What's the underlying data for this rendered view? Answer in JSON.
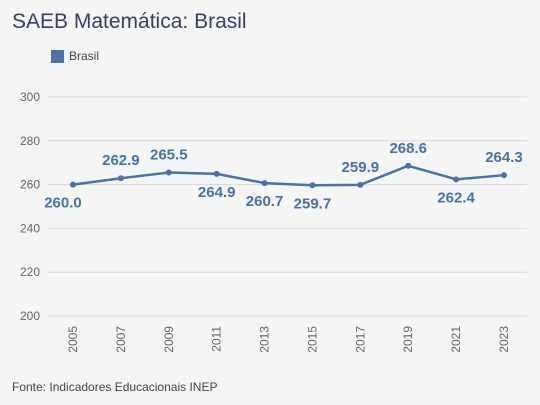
{
  "chart_data": {
    "type": "line",
    "title": "SAEB Matemática: Brasil",
    "categories": [
      "2005",
      "2007",
      "2009",
      "2011",
      "2013",
      "2015",
      "2017",
      "2019",
      "2021",
      "2023"
    ],
    "series": [
      {
        "name": "Brasil",
        "color": "#4a72a3",
        "values": [
          260.0,
          262.9,
          265.5,
          264.9,
          260.7,
          259.7,
          259.9,
          268.6,
          262.4,
          264.3
        ],
        "labels": [
          "260.0",
          "262.9",
          "265.5",
          "264.9",
          "260.7",
          "259.7",
          "259.9",
          "268.6",
          "262.4",
          "264.3"
        ],
        "label_position": [
          "below",
          "above",
          "above",
          "below",
          "below",
          "below",
          "above",
          "above",
          "below",
          "above"
        ]
      }
    ],
    "yticks": [
      200,
      220,
      240,
      260,
      280,
      300
    ],
    "ylim": [
      200,
      300
    ],
    "grid": true,
    "legend": "top-left"
  },
  "footer": {
    "source": "Fonte: Indicadores Educacionais INEP"
  }
}
